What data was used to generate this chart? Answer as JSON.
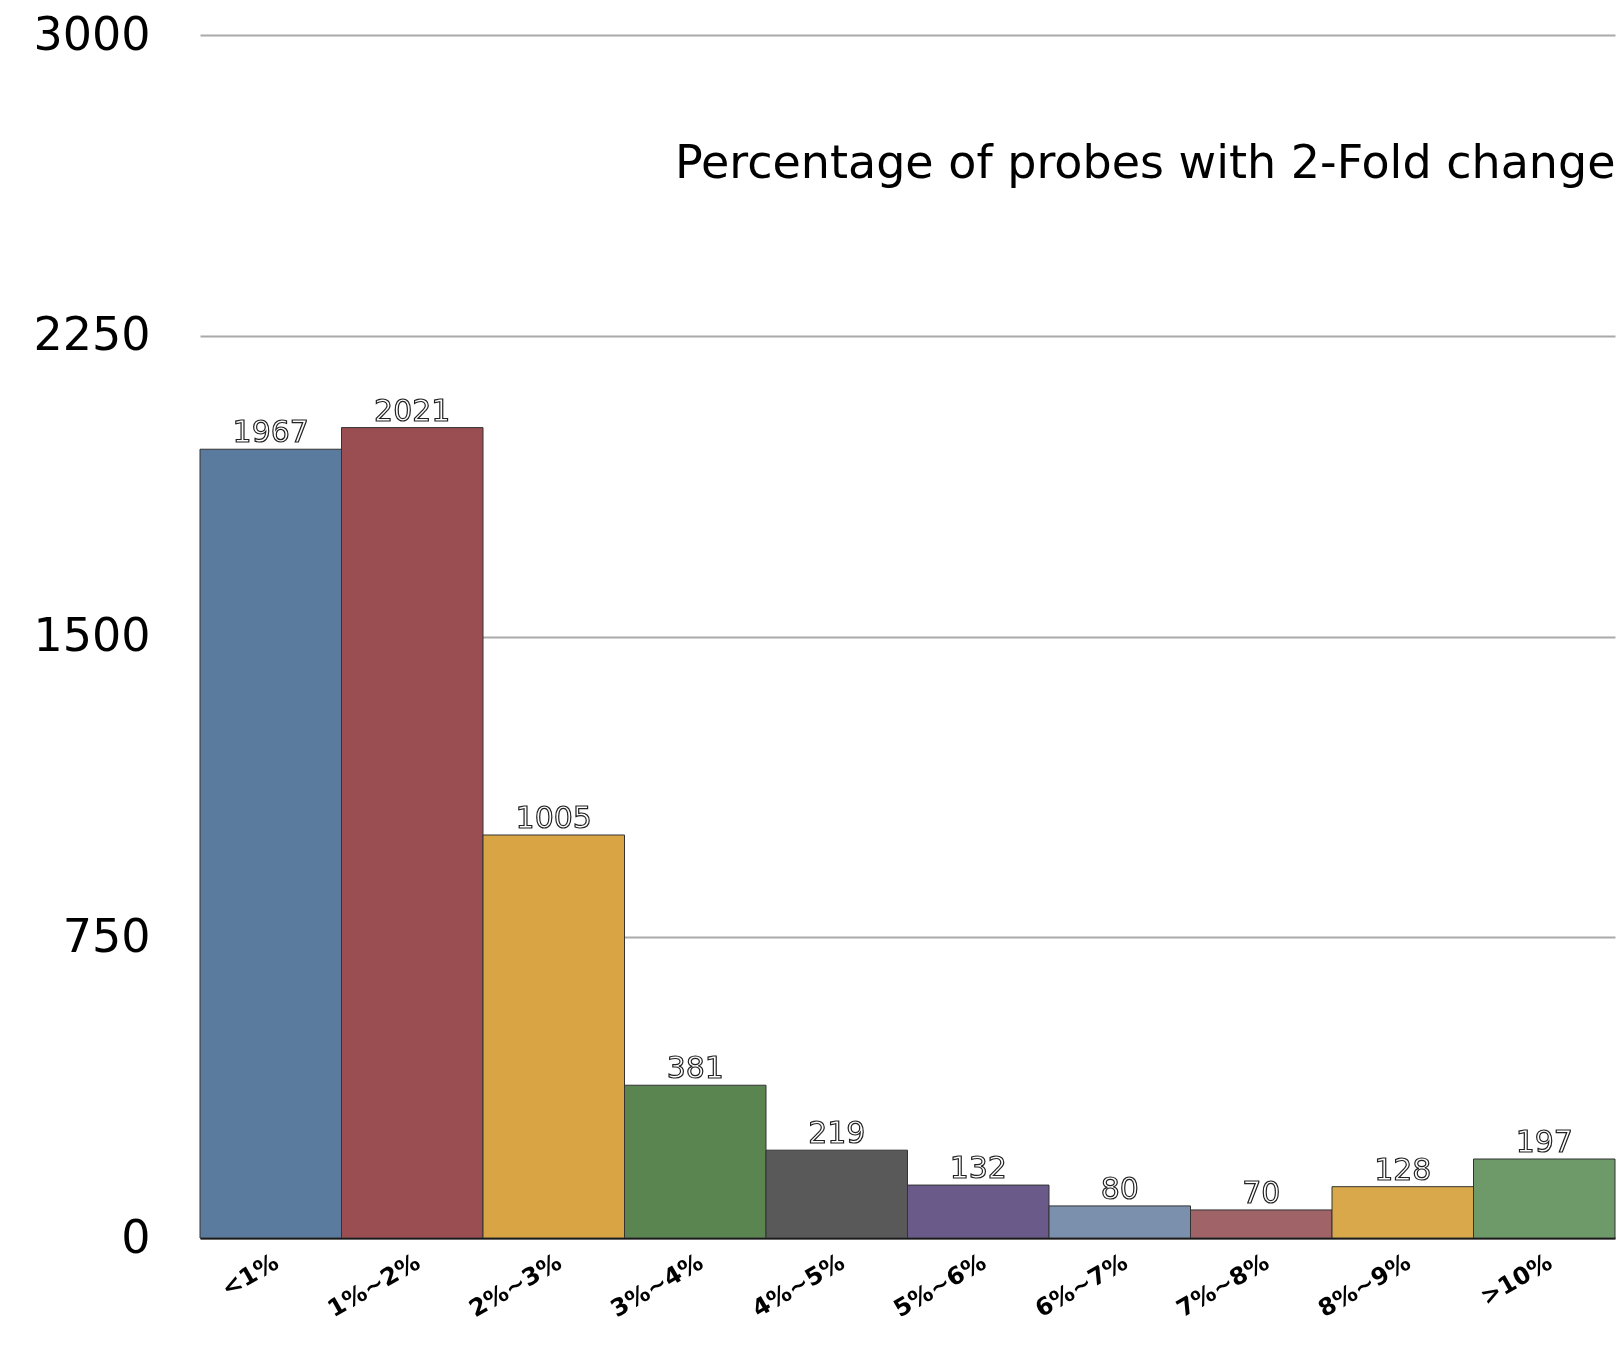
{
  "chart_data": {
    "type": "bar",
    "title": "Percentage of probes with 2-Fold change",
    "categories": [
      "<1%",
      "1%~2%",
      "2%~3%",
      "3%~4%",
      "4%~5%",
      "5%~6%",
      "6%~7%",
      "7%~8%",
      "8%~9%",
      ">10%"
    ],
    "values": [
      1967,
      2021,
      1005,
      381,
      219,
      132,
      80,
      70,
      128,
      197
    ],
    "colors": [
      "#5a7a9e",
      "#9a4e52",
      "#d9a544",
      "#5a8450",
      "#595959",
      "#6a5a8a",
      "#7a90ad",
      "#a06468",
      "#d8a84a",
      "#6e9a6a"
    ],
    "ylim": [
      0,
      3000
    ],
    "yticks": [
      0,
      750,
      1500,
      2250,
      3000
    ],
    "grid": "y",
    "data_labels": true
  }
}
